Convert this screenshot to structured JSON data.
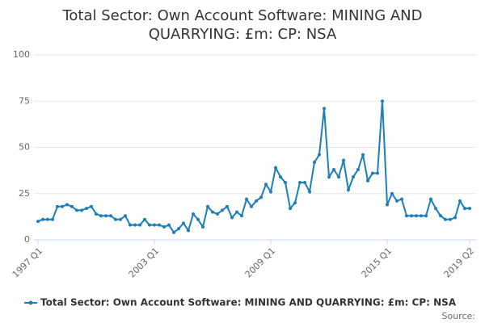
{
  "chart_data": {
    "type": "line",
    "title": "Total Sector: Own Account Software: MINING AND QUARRYING: £m: CP: NSA",
    "categories": [
      "1997 Q1",
      null,
      null,
      null,
      null,
      null,
      null,
      null,
      null,
      null,
      null,
      null,
      null,
      null,
      null,
      null,
      null,
      null,
      null,
      null,
      null,
      null,
      null,
      null,
      "2003 Q1",
      null,
      null,
      null,
      null,
      null,
      null,
      null,
      null,
      null,
      null,
      null,
      null,
      null,
      null,
      null,
      null,
      null,
      null,
      null,
      null,
      null,
      null,
      null,
      "2009 Q1",
      null,
      null,
      null,
      null,
      null,
      null,
      null,
      null,
      null,
      null,
      null,
      null,
      null,
      null,
      null,
      null,
      null,
      null,
      null,
      null,
      null,
      null,
      null,
      "2015 Q1",
      null,
      null,
      null,
      null,
      null,
      null,
      null,
      null,
      null,
      null,
      null,
      null,
      null,
      null,
      null,
      null,
      "2019 Q2"
    ],
    "series": [
      {
        "name": "Total Sector: Own Account Software: MINING AND QUARRYING: £m: CP: NSA",
        "color": "#1a7fbb",
        "values": [
          10,
          11,
          11,
          11,
          18,
          18,
          19,
          18,
          16,
          16,
          17,
          18,
          14,
          13,
          13,
          13,
          11,
          11,
          13,
          8,
          8,
          8,
          11,
          8,
          8,
          8,
          7,
          8,
          4,
          6,
          9,
          5,
          14,
          11,
          7,
          18,
          15,
          14,
          16,
          18,
          12,
          15,
          13,
          22,
          18,
          21,
          23,
          30,
          26,
          39,
          34,
          31,
          17,
          20,
          31,
          31,
          26,
          42,
          46,
          71,
          34,
          38,
          34,
          43,
          27,
          34,
          38,
          46,
          32,
          36,
          36,
          75,
          19,
          25,
          21,
          22,
          13,
          13,
          13,
          13,
          13,
          22,
          17,
          13,
          11,
          11,
          12,
          21,
          17,
          17
        ]
      }
    ],
    "ylim": [
      0,
      100
    ],
    "yticks": [
      0,
      25,
      50,
      75,
      100
    ],
    "grid": true,
    "source": "Source:"
  }
}
